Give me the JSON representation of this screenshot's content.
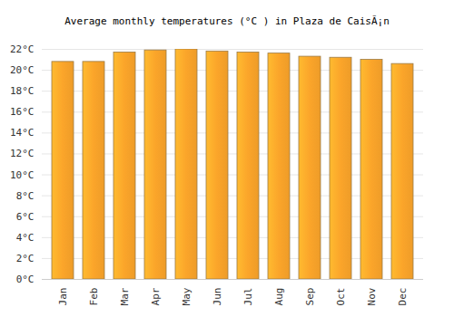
{
  "chart_data": {
    "type": "bar",
    "title": "Average monthly temperatures (°C ) in Plaza de CaisÃ¡n",
    "categories": [
      "Jan",
      "Feb",
      "Mar",
      "Apr",
      "May",
      "Jun",
      "Jul",
      "Aug",
      "Sep",
      "Oct",
      "Nov",
      "Dec"
    ],
    "values": [
      20.8,
      20.8,
      21.7,
      21.9,
      22.0,
      21.8,
      21.7,
      21.6,
      21.3,
      21.2,
      21.0,
      20.6
    ],
    "color": "#fba52a",
    "ylim": [
      0,
      22
    ],
    "yticks": [
      {
        "value": 0,
        "label": "0°C"
      },
      {
        "value": 2,
        "label": "2°C"
      },
      {
        "value": 4,
        "label": "4°C"
      },
      {
        "value": 6,
        "label": "6°C"
      },
      {
        "value": 8,
        "label": "8°C"
      },
      {
        "value": 10,
        "label": "10°C"
      },
      {
        "value": 12,
        "label": "12°C"
      },
      {
        "value": 14,
        "label": "14°C"
      },
      {
        "value": 16,
        "label": "16°C"
      },
      {
        "value": 18,
        "label": "18°C"
      },
      {
        "value": 20,
        "label": "20°C"
      },
      {
        "value": 22,
        "label": "22°C"
      }
    ],
    "grid": true
  }
}
